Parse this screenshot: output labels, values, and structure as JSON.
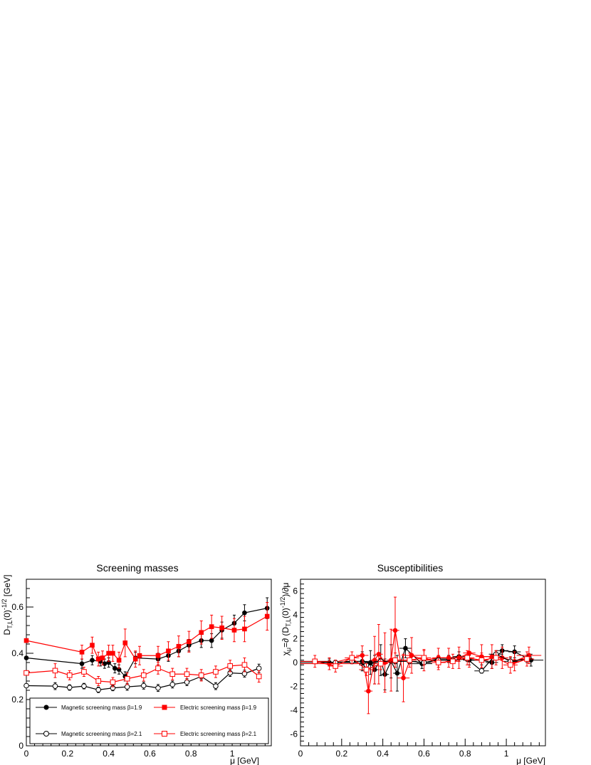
{
  "chart_data": [
    {
      "type": "scatter",
      "title": "Screening masses",
      "xlabel": "μ [GeV]",
      "ylabel": "D_T,L(0)^-1/2 [GeV]",
      "xlim": [
        0,
        1.19
      ],
      "ylim": [
        0,
        0.72
      ],
      "xticks": [
        0,
        0.2,
        0.4,
        0.6,
        0.8,
        1
      ],
      "yticks": [
        0,
        0.2,
        0.4,
        0.6
      ],
      "grid": false,
      "legend_position": "bottom",
      "series": [
        {
          "name": "Magnetic screening mass β=1.9",
          "color": "#000000",
          "marker": "filled-circle",
          "x": [
            0,
            0.27,
            0.32,
            0.36,
            0.38,
            0.4,
            0.43,
            0.45,
            0.48,
            0.53,
            0.64,
            0.69,
            0.74,
            0.79,
            0.85,
            0.9,
            0.95,
            1.01,
            1.06,
            1.17
          ],
          "y": [
            0.38,
            0.355,
            0.37,
            0.365,
            0.355,
            0.36,
            0.335,
            0.33,
            0.3,
            0.38,
            0.375,
            0.39,
            0.41,
            0.435,
            0.455,
            0.455,
            0.5,
            0.53,
            0.575,
            0.595
          ],
          "err": [
            0,
            0.02,
            0.02,
            0.02,
            0.02,
            0.02,
            0.02,
            0.02,
            0.02,
            0.025,
            0.025,
            0.025,
            0.025,
            0.025,
            0.03,
            0.03,
            0.035,
            0.035,
            0.035,
            0.045
          ]
        },
        {
          "name": "Electric screening mass β=1.9",
          "color": "#ff0000",
          "marker": "filled-square",
          "x": [
            0,
            0.27,
            0.32,
            0.35,
            0.37,
            0.4,
            0.42,
            0.45,
            0.48,
            0.53,
            0.55,
            0.64,
            0.69,
            0.74,
            0.79,
            0.85,
            0.9,
            0.95,
            1.01,
            1.06,
            1.17
          ],
          "y": [
            0.455,
            0.405,
            0.435,
            0.375,
            0.38,
            0.4,
            0.4,
            0.37,
            0.445,
            0.375,
            0.39,
            0.39,
            0.41,
            0.43,
            0.45,
            0.49,
            0.515,
            0.51,
            0.5,
            0.505,
            0.56
          ],
          "err": [
            0,
            0.03,
            0.035,
            0.03,
            0.03,
            0.035,
            0.035,
            0.035,
            0.06,
            0.035,
            0.04,
            0.04,
            0.04,
            0.045,
            0.045,
            0.05,
            0.05,
            0.05,
            0.05,
            0.055,
            0.06
          ]
        },
        {
          "name": "Magnetic screening mass β=2.1",
          "color": "#000000",
          "marker": "open-circle",
          "x": [
            0,
            0.14,
            0.21,
            0.28,
            0.35,
            0.42,
            0.49,
            0.57,
            0.64,
            0.71,
            0.78,
            0.85,
            0.92,
            0.99,
            1.06,
            1.13
          ],
          "y": [
            0.26,
            0.258,
            0.252,
            0.258,
            0.242,
            0.25,
            0.255,
            0.26,
            0.25,
            0.265,
            0.275,
            0.3,
            0.258,
            0.315,
            0.312,
            0.335
          ],
          "err": [
            0,
            0.015,
            0.012,
            0.012,
            0.012,
            0.012,
            0.015,
            0.015,
            0.015,
            0.015,
            0.015,
            0.015,
            0.015,
            0.015,
            0.015,
            0.018
          ]
        },
        {
          "name": "Electric screening mass β=2.1",
          "color": "#ff0000",
          "marker": "open-square",
          "x": [
            0,
            0.14,
            0.21,
            0.28,
            0.35,
            0.42,
            0.49,
            0.57,
            0.64,
            0.71,
            0.78,
            0.85,
            0.92,
            0.99,
            1.06,
            1.13
          ],
          "y": [
            0.315,
            0.325,
            0.305,
            0.32,
            0.28,
            0.275,
            0.29,
            0.305,
            0.335,
            0.31,
            0.31,
            0.305,
            0.32,
            0.345,
            0.35,
            0.3
          ],
          "err": [
            0,
            0.03,
            0.02,
            0.02,
            0.02,
            0.02,
            0.025,
            0.025,
            0.025,
            0.025,
            0.025,
            0.025,
            0.025,
            0.025,
            0.03,
            0.025
          ]
        }
      ]
    },
    {
      "type": "scatter",
      "title": "Susceptibilities",
      "xlabel": "μ [GeV]",
      "ylabel": "χ_μ=∂ (D_T,L(0)^-1/2)/∂μ",
      "xlim": [
        0,
        1.19
      ],
      "ylim": [
        -7,
        7
      ],
      "xticks": [
        0,
        0.2,
        0.4,
        0.6,
        0.8,
        1
      ],
      "yticks": [
        -6,
        -4,
        -2,
        0,
        2,
        4,
        6
      ],
      "grid": false,
      "series": [
        {
          "name": "Magnetic screening mass β=1.9",
          "color": "#000000",
          "marker": "filled-circle",
          "x": [
            0.14,
            0.3,
            0.34,
            0.36,
            0.39,
            0.41,
            0.44,
            0.47,
            0.51,
            0.59,
            0.67,
            0.72,
            0.77,
            0.82,
            0.88,
            0.93,
            0.98,
            1.04,
            1.12
          ],
          "y": [
            0,
            0.1,
            0,
            -0.6,
            0.2,
            -1.0,
            0.1,
            -0.9,
            1.2,
            -0.1,
            0.3,
            0.3,
            0.5,
            0.2,
            0.2,
            0.0,
            1.0,
            0.9,
            0.2
          ],
          "err": [
            0.3,
            0.8,
            1.0,
            1.2,
            1.3,
            1.3,
            1.4,
            1.5,
            0.8,
            0.4,
            0.3,
            0.3,
            0.4,
            0.4,
            0.4,
            0.5,
            0.5,
            0.5,
            0.5
          ],
          "xerr": [
            0.14,
            0.03,
            0.02,
            0.02,
            0.02,
            0.02,
            0.02,
            0.02,
            0.03,
            0.05,
            0.03,
            0.03,
            0.03,
            0.03,
            0.03,
            0.03,
            0.03,
            0.03,
            0.06
          ]
        },
        {
          "name": "Electric screening mass β=1.9",
          "color": "#ff0000",
          "marker": "filled-circle",
          "x": [
            0.14,
            0.3,
            0.33,
            0.36,
            0.38,
            0.41,
            0.44,
            0.46,
            0.5,
            0.54,
            0.6,
            0.67,
            0.72,
            0.77,
            0.82,
            0.88,
            0.93,
            0.98,
            1.04,
            1.11
          ],
          "y": [
            -0.1,
            0.6,
            -2.4,
            0.2,
            0.7,
            0,
            0.2,
            2.7,
            -1.3,
            0.6,
            0.2,
            0.4,
            0.4,
            0.4,
            0.8,
            0.5,
            0.5,
            0.4,
            0.1,
            0.6
          ],
          "err": [
            0.5,
            0.8,
            1.9,
            2.0,
            2.5,
            2.5,
            2.6,
            2.8,
            2.0,
            1.5,
            0.9,
            0.8,
            0.8,
            0.9,
            1.2,
            1.0,
            1.0,
            0.9,
            0.8,
            0.7
          ],
          "xerr": [
            0.14,
            0.03,
            0.02,
            0.02,
            0.02,
            0.02,
            0.02,
            0.02,
            0.03,
            0.05,
            0.03,
            0.03,
            0.03,
            0.03,
            0.03,
            0.03,
            0.03,
            0.03,
            0.03,
            0.06
          ]
        },
        {
          "name": "Magnetic screening mass β=2.1",
          "color": "#000000",
          "marker": "open-circle",
          "x": [
            0.07,
            0.17,
            0.25,
            0.32,
            0.39,
            0.46,
            0.53,
            0.6,
            0.67,
            0.74,
            0.81,
            0.88,
            0.95,
            1.02,
            1.1
          ],
          "y": [
            0.1,
            0,
            0.1,
            -0.2,
            0.1,
            0.1,
            0.1,
            0,
            0.2,
            0.2,
            0.3,
            -0.7,
            0.7,
            0.1,
            0.3
          ],
          "err": [
            0.2,
            0.2,
            0.2,
            0.2,
            0.2,
            0.2,
            0.2,
            0.2,
            0.2,
            0.2,
            0.2,
            0.2,
            0.3,
            0.3,
            0.3
          ],
          "xerr": [
            0.07,
            0.035,
            0.035,
            0.035,
            0.035,
            0.035,
            0.035,
            0.035,
            0.035,
            0.035,
            0.035,
            0.035,
            0.035,
            0.035,
            0.035
          ]
        },
        {
          "name": "Electric screening mass β=2.1",
          "color": "#ff0000",
          "marker": "open-square",
          "x": [
            0.07,
            0.17,
            0.25,
            0.32,
            0.39,
            0.46,
            0.53,
            0.6,
            0.67,
            0.74,
            0.81,
            0.88,
            0.95,
            1.02,
            1.1
          ],
          "y": [
            0.1,
            -0.3,
            0.4,
            -0.6,
            -0.1,
            0.2,
            0.2,
            0.4,
            0,
            0.1,
            0.4,
            0.2,
            0.4,
            -0.2,
            0.3
          ],
          "err": [
            0.5,
            0.5,
            0.5,
            0.5,
            0.5,
            0.6,
            0.6,
            0.6,
            0.6,
            0.6,
            0.6,
            0.6,
            0.6,
            0.7,
            0.6
          ],
          "xerr": [
            0.07,
            0.035,
            0.035,
            0.035,
            0.035,
            0.035,
            0.035,
            0.035,
            0.035,
            0.035,
            0.035,
            0.035,
            0.035,
            0.035,
            0.035
          ]
        }
      ]
    }
  ]
}
